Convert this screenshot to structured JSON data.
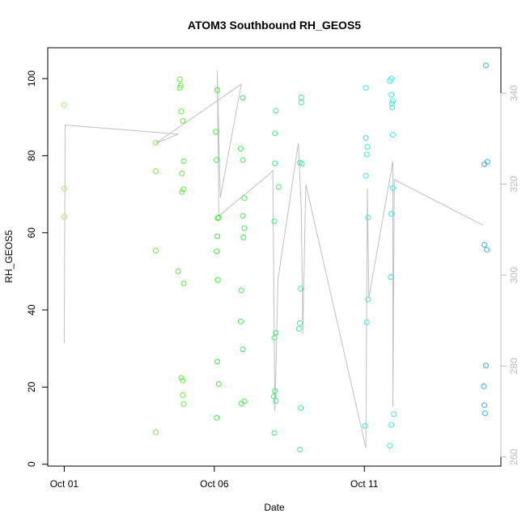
{
  "chart_data": {
    "type": "scatter",
    "title": "ATOM3 Southbound RH_GEOS5",
    "xlabel": "Date",
    "ylabel": "RH_GEOS5",
    "x_ticks": [
      {
        "value": 0,
        "label": "Oct 01"
      },
      {
        "value": 5,
        "label": "Oct 06"
      },
      {
        "value": 10,
        "label": "Oct 11"
      }
    ],
    "xlim": [
      -0.55,
      14.55
    ],
    "ylim": [
      -0.5,
      108
    ],
    "y_ticks": [
      0,
      20,
      40,
      60,
      80,
      100
    ],
    "y2lim": [
      258,
      350
    ],
    "y2_ticks": [
      260,
      280,
      300,
      320,
      340
    ],
    "secondary_color": "#c0c0c0",
    "grid": false,
    "legend": "none",
    "series": [
      {
        "color_by": "latitude",
        "points": [
          {
            "x": 0.0,
            "y": 93.2,
            "c": "#a6e86a"
          },
          {
            "x": 0.0,
            "y": 71.5,
            "c": "#a6e86a"
          },
          {
            "x": 0.0,
            "y": 64.2,
            "c": "#a6e86a"
          },
          {
            "x": 3.05,
            "y": 83.4,
            "c": "#7de840"
          },
          {
            "x": 3.05,
            "y": 76.0,
            "c": "#7de840"
          },
          {
            "x": 3.05,
            "y": 55.4,
            "c": "#7de840"
          },
          {
            "x": 3.05,
            "y": 8.3,
            "c": "#7de840"
          },
          {
            "x": 3.85,
            "y": 99.8,
            "c": "#5ef03a"
          },
          {
            "x": 3.88,
            "y": 98.2,
            "c": "#5ef03a"
          },
          {
            "x": 3.85,
            "y": 97.6,
            "c": "#5ef03a"
          },
          {
            "x": 3.9,
            "y": 91.5,
            "c": "#5ef03a"
          },
          {
            "x": 3.95,
            "y": 89.0,
            "c": "#5ef03a"
          },
          {
            "x": 3.98,
            "y": 78.6,
            "c": "#5ef03a"
          },
          {
            "x": 3.92,
            "y": 75.4,
            "c": "#5ef03a"
          },
          {
            "x": 3.97,
            "y": 71.3,
            "c": "#5ef03a"
          },
          {
            "x": 3.92,
            "y": 70.6,
            "c": "#5ef03a"
          },
          {
            "x": 3.8,
            "y": 50.0,
            "c": "#5ef03a"
          },
          {
            "x": 3.98,
            "y": 46.9,
            "c": "#5ef03a"
          },
          {
            "x": 3.9,
            "y": 22.4,
            "c": "#5ef03a"
          },
          {
            "x": 3.95,
            "y": 21.7,
            "c": "#5ef03a"
          },
          {
            "x": 3.95,
            "y": 17.9,
            "c": "#5ef03a"
          },
          {
            "x": 3.98,
            "y": 15.6,
            "c": "#5ef03a"
          },
          {
            "x": 5.1,
            "y": 97.0,
            "c": "#3cf03c"
          },
          {
            "x": 5.05,
            "y": 86.2,
            "c": "#3cf03c"
          },
          {
            "x": 5.08,
            "y": 78.9,
            "c": "#3cf03c"
          },
          {
            "x": 5.15,
            "y": 64.0,
            "c": "#3cf03c"
          },
          {
            "x": 5.12,
            "y": 63.8,
            "c": "#3cf03c"
          },
          {
            "x": 5.1,
            "y": 59.1,
            "c": "#3cf03c"
          },
          {
            "x": 5.08,
            "y": 55.2,
            "c": "#3cf03c"
          },
          {
            "x": 5.12,
            "y": 47.8,
            "c": "#3cf03c"
          },
          {
            "x": 5.1,
            "y": 26.6,
            "c": "#3cf03c"
          },
          {
            "x": 5.15,
            "y": 20.8,
            "c": "#3cf03c"
          },
          {
            "x": 5.08,
            "y": 12.0,
            "c": "#3cf03c"
          },
          {
            "x": 5.95,
            "y": 95.0,
            "c": "#3cf050"
          },
          {
            "x": 5.88,
            "y": 81.8,
            "c": "#3cf050"
          },
          {
            "x": 5.95,
            "y": 78.9,
            "c": "#3cf050"
          },
          {
            "x": 6.0,
            "y": 69.0,
            "c": "#3cf050"
          },
          {
            "x": 5.95,
            "y": 64.4,
            "c": "#3cf050"
          },
          {
            "x": 6.0,
            "y": 61.2,
            "c": "#3cf050"
          },
          {
            "x": 5.97,
            "y": 58.8,
            "c": "#3cf050"
          },
          {
            "x": 5.9,
            "y": 45.1,
            "c": "#3cf050"
          },
          {
            "x": 5.88,
            "y": 37.0,
            "c": "#3cf050"
          },
          {
            "x": 5.95,
            "y": 29.8,
            "c": "#3cf050"
          },
          {
            "x": 6.0,
            "y": 16.3,
            "c": "#3cf050"
          },
          {
            "x": 5.9,
            "y": 15.7,
            "c": "#3cf050"
          },
          {
            "x": 7.05,
            "y": 91.7,
            "c": "#3cf07a"
          },
          {
            "x": 7.02,
            "y": 85.8,
            "c": "#3cf07a"
          },
          {
            "x": 7.02,
            "y": 78.0,
            "c": "#3cf07a"
          },
          {
            "x": 7.15,
            "y": 71.9,
            "c": "#3cf07a"
          },
          {
            "x": 7.0,
            "y": 63.0,
            "c": "#3cf07a"
          },
          {
            "x": 7.05,
            "y": 34.1,
            "c": "#3cf07a"
          },
          {
            "x": 7.0,
            "y": 32.8,
            "c": "#3cf07a"
          },
          {
            "x": 7.02,
            "y": 19.0,
            "c": "#3cf07a"
          },
          {
            "x": 6.98,
            "y": 17.6,
            "c": "#3cf07a"
          },
          {
            "x": 7.05,
            "y": 16.4,
            "c": "#3cf07a"
          },
          {
            "x": 7.0,
            "y": 8.1,
            "c": "#3cf07a"
          },
          {
            "x": 7.9,
            "y": 95.1,
            "c": "#3cf0a0"
          },
          {
            "x": 7.9,
            "y": 93.8,
            "c": "#3cf0a0"
          },
          {
            "x": 7.85,
            "y": 78.2,
            "c": "#3cf0a0"
          },
          {
            "x": 7.92,
            "y": 77.9,
            "c": "#3cf0a0"
          },
          {
            "x": 7.88,
            "y": 45.5,
            "c": "#3cf0a0"
          },
          {
            "x": 7.85,
            "y": 36.6,
            "c": "#3cf0a0"
          },
          {
            "x": 7.82,
            "y": 35.1,
            "c": "#3cf0a0"
          },
          {
            "x": 7.88,
            "y": 14.6,
            "c": "#3cf0a0"
          },
          {
            "x": 7.85,
            "y": 3.8,
            "c": "#3cf0a0"
          },
          {
            "x": 10.05,
            "y": 97.6,
            "c": "#3ce8d8"
          },
          {
            "x": 10.05,
            "y": 84.6,
            "c": "#3ce8d8"
          },
          {
            "x": 10.1,
            "y": 82.3,
            "c": "#3ce8d8"
          },
          {
            "x": 10.08,
            "y": 80.3,
            "c": "#3ce8d8"
          },
          {
            "x": 10.05,
            "y": 74.8,
            "c": "#3ce8d8"
          },
          {
            "x": 10.12,
            "y": 64.0,
            "c": "#3ce8d8"
          },
          {
            "x": 10.12,
            "y": 42.7,
            "c": "#3ce8d8"
          },
          {
            "x": 10.08,
            "y": 36.8,
            "c": "#3ce8d8"
          },
          {
            "x": 10.02,
            "y": 9.9,
            "c": "#3ce8d8"
          },
          {
            "x": 10.85,
            "y": 99.4,
            "c": "#3ce8e8"
          },
          {
            "x": 10.9,
            "y": 100.0,
            "c": "#3ce8e8"
          },
          {
            "x": 10.9,
            "y": 95.8,
            "c": "#3ce8e8"
          },
          {
            "x": 10.95,
            "y": 94.2,
            "c": "#3ce8e8"
          },
          {
            "x": 10.92,
            "y": 93.5,
            "c": "#3ce8e8"
          },
          {
            "x": 10.93,
            "y": 92.5,
            "c": "#3ce8e8"
          },
          {
            "x": 10.95,
            "y": 85.4,
            "c": "#3ce8e8"
          },
          {
            "x": 10.95,
            "y": 71.6,
            "c": "#3ce8e8"
          },
          {
            "x": 10.9,
            "y": 64.9,
            "c": "#3ce8e8"
          },
          {
            "x": 10.88,
            "y": 48.5,
            "c": "#3ce8e8"
          },
          {
            "x": 10.98,
            "y": 13.0,
            "c": "#3ce8e8"
          },
          {
            "x": 10.9,
            "y": 10.2,
            "c": "#3ce8e8"
          },
          {
            "x": 10.85,
            "y": 4.8,
            "c": "#3ce8e8"
          },
          {
            "x": 14.05,
            "y": 103.4,
            "c": "#3cb0e8"
          },
          {
            "x": 14.1,
            "y": 78.4,
            "c": "#3cb0e8"
          },
          {
            "x": 14.0,
            "y": 77.8,
            "c": "#3cb0e8"
          },
          {
            "x": 14.0,
            "y": 56.9,
            "c": "#3cb0e8"
          },
          {
            "x": 14.08,
            "y": 55.6,
            "c": "#3cb0e8"
          },
          {
            "x": 14.05,
            "y": 25.6,
            "c": "#3cb0e8"
          },
          {
            "x": 13.98,
            "y": 20.2,
            "c": "#3cb0e8"
          },
          {
            "x": 14.0,
            "y": 15.3,
            "c": "#3cb0e8"
          },
          {
            "x": 14.02,
            "y": 13.2,
            "c": "#3cb0e8"
          }
        ]
      },
      {
        "axis": "secondary",
        "line": [
          {
            "x": 0.0,
            "y": 285
          },
          {
            "x": 0.03,
            "y": 333
          },
          {
            "x": 3.8,
            "y": 331
          },
          {
            "x": 3.05,
            "y": 329
          },
          {
            "x": 5.9,
            "y": 342
          },
          {
            "x": 5.2,
            "y": 317
          },
          {
            "x": 5.1,
            "y": 345
          },
          {
            "x": 5.15,
            "y": 313
          },
          {
            "x": 6.8,
            "y": 322
          },
          {
            "x": 6.95,
            "y": 323
          },
          {
            "x": 7.02,
            "y": 270
          },
          {
            "x": 7.12,
            "y": 299
          },
          {
            "x": 7.8,
            "y": 329
          },
          {
            "x": 7.9,
            "y": 314
          },
          {
            "x": 7.95,
            "y": 287
          },
          {
            "x": 8.05,
            "y": 320
          },
          {
            "x": 10.05,
            "y": 262
          },
          {
            "x": 10.1,
            "y": 319
          },
          {
            "x": 10.15,
            "y": 295
          },
          {
            "x": 10.95,
            "y": 325
          },
          {
            "x": 10.95,
            "y": 271
          },
          {
            "x": 11.0,
            "y": 321
          },
          {
            "x": 13.95,
            "y": 311
          }
        ]
      }
    ]
  }
}
